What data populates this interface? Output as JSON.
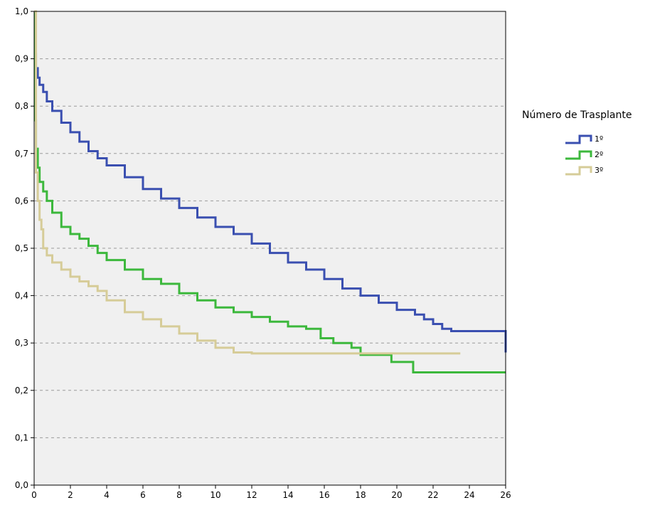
{
  "chart_data": {
    "type": "line",
    "xlim": [
      0,
      26
    ],
    "ylim": [
      0,
      1
    ],
    "x_ticks": [
      "0",
      "2",
      "4",
      "6",
      "8",
      "10",
      "12",
      "14",
      "16",
      "18",
      "20",
      "22",
      "24",
      "26"
    ],
    "y_ticks": [
      "0,0",
      "0,1",
      "0,2",
      "0,3",
      "0,4",
      "0,5",
      "0,6",
      "0,7",
      "0,8",
      "0,9",
      "1,0"
    ],
    "grid": "horizontal dashed",
    "background": "#f0f0f0",
    "legend": {
      "title": "Número de Trasplante",
      "placement": "right"
    },
    "series": [
      {
        "name": "1º",
        "color": "#3a4fb0",
        "x": [
          0,
          0.05,
          0.1,
          0.2,
          0.3,
          0.5,
          0.7,
          1.0,
          1.5,
          2.0,
          2.5,
          3.0,
          3.5,
          4.0,
          5.0,
          6.0,
          7.0,
          8.0,
          9.0,
          10.0,
          11.0,
          12.0,
          13.0,
          14.0,
          15.0,
          16.0,
          17.0,
          18.0,
          19.0,
          20.0,
          21.0,
          21.5,
          22.0,
          22.5,
          23.0,
          25.0,
          25.9,
          26.0
        ],
        "y": [
          1.0,
          0.91,
          0.88,
          0.86,
          0.845,
          0.83,
          0.81,
          0.79,
          0.765,
          0.745,
          0.725,
          0.705,
          0.69,
          0.675,
          0.65,
          0.625,
          0.605,
          0.585,
          0.565,
          0.545,
          0.53,
          0.51,
          0.49,
          0.47,
          0.455,
          0.435,
          0.415,
          0.4,
          0.385,
          0.37,
          0.36,
          0.35,
          0.34,
          0.33,
          0.325,
          0.325,
          0.325,
          0.28
        ]
      },
      {
        "name": "2º",
        "color": "#3cb83c",
        "x": [
          0,
          0.05,
          0.1,
          0.2,
          0.3,
          0.5,
          0.7,
          1.0,
          1.5,
          2.0,
          2.5,
          3.0,
          3.5,
          4.0,
          5.0,
          6.0,
          7.0,
          8.0,
          9.0,
          10.0,
          11.0,
          12.0,
          13.0,
          14.0,
          15.0,
          15.8,
          16.5,
          17.5,
          18.0,
          19.0,
          19.7,
          20.9,
          26.0
        ],
        "y": [
          1.0,
          0.77,
          0.71,
          0.67,
          0.64,
          0.62,
          0.6,
          0.575,
          0.545,
          0.53,
          0.52,
          0.505,
          0.49,
          0.475,
          0.455,
          0.435,
          0.425,
          0.405,
          0.39,
          0.375,
          0.365,
          0.355,
          0.345,
          0.335,
          0.33,
          0.31,
          0.3,
          0.29,
          0.275,
          0.275,
          0.26,
          0.238,
          0.238
        ]
      },
      {
        "name": "3º",
        "color": "#d6cc98",
        "x": [
          0,
          0.1,
          0.2,
          0.3,
          0.4,
          0.5,
          0.7,
          1.0,
          1.5,
          2.0,
          2.5,
          3.0,
          3.5,
          4.0,
          5.0,
          6.0,
          7.0,
          8.0,
          9.0,
          10.0,
          11.0,
          12.0,
          14.0,
          16.0,
          18.0,
          20.0,
          23.5
        ],
        "y": [
          1.0,
          0.66,
          0.6,
          0.56,
          0.54,
          0.5,
          0.485,
          0.47,
          0.455,
          0.44,
          0.43,
          0.42,
          0.41,
          0.39,
          0.365,
          0.35,
          0.335,
          0.32,
          0.305,
          0.29,
          0.28,
          0.278,
          0.278,
          0.278,
          0.278,
          0.278,
          0.278
        ]
      }
    ]
  }
}
